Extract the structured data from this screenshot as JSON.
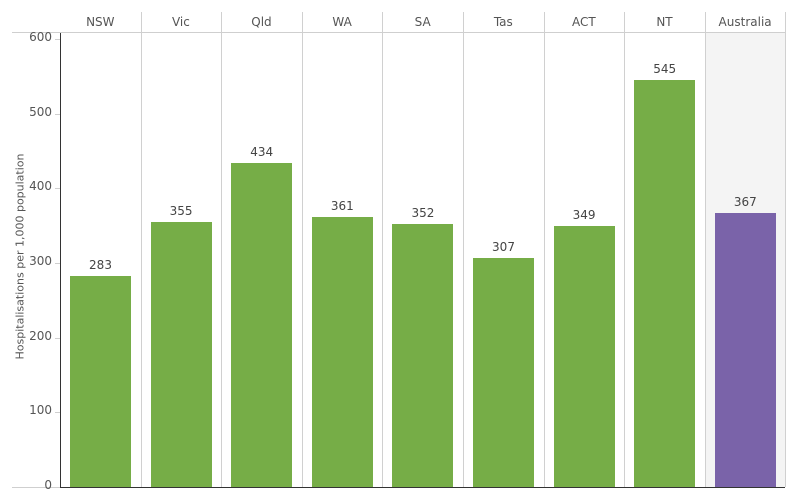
{
  "chart_data": {
    "type": "bar",
    "title": "",
    "xlabel": "",
    "ylabel": "Hospitalisations per 1,000 population",
    "categories": [
      "NSW",
      "Vic",
      "Qld",
      "WA",
      "SA",
      "Tas",
      "ACT",
      "NT",
      "Australia"
    ],
    "values": [
      283,
      355,
      434,
      361,
      352,
      307,
      349,
      545,
      367
    ],
    "ylim": [
      0,
      600
    ],
    "yticks": [
      0,
      100,
      200,
      300,
      400,
      500,
      600
    ],
    "grid": false,
    "legend": "none",
    "colors": {
      "state": "#76ad47",
      "national": "#7a63a9",
      "national_background": "#f4f4f4"
    },
    "data_labels": [
      "283",
      "355",
      "434",
      "361",
      "352",
      "307",
      "349",
      "545",
      "367"
    ]
  }
}
